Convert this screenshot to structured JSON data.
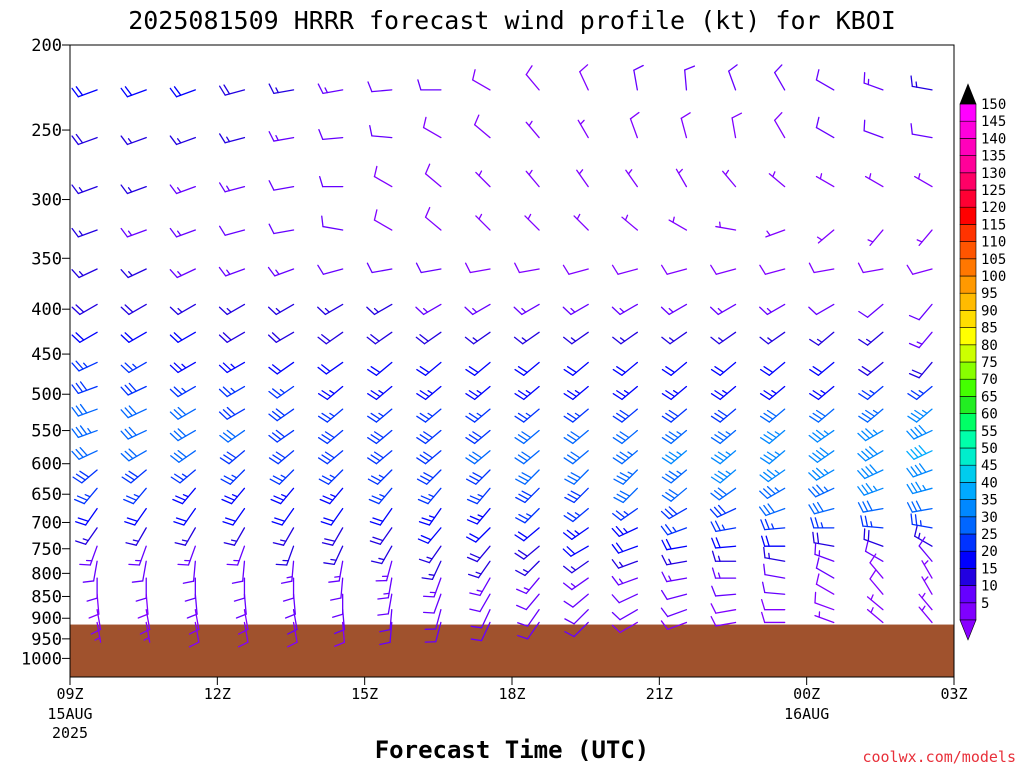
{
  "title": "2025081509 HRRR forecast wind profile (kt) for KBOI",
  "credit": "coolwx.com/models",
  "chart_data": {
    "type": "wind-barb-profile",
    "title": "2025081509 HRRR forecast wind profile (kt) for KBOI",
    "xlabel": "Forecast Time (UTC)",
    "ylabel": "",
    "y_scale": "log-pressure",
    "y_axis": {
      "ticks": [
        200,
        250,
        300,
        350,
        400,
        450,
        500,
        550,
        600,
        650,
        700,
        750,
        800,
        850,
        900,
        950,
        1000
      ],
      "range_hPa": [
        200,
        1050
      ]
    },
    "x_axis": {
      "ticks": [
        {
          "hour": 0,
          "label": "09Z",
          "sub": [
            "15AUG",
            "2025"
          ]
        },
        {
          "hour": 3,
          "label": "12Z",
          "sub": []
        },
        {
          "hour": 6,
          "label": "15Z",
          "sub": []
        },
        {
          "hour": 9,
          "label": "18Z",
          "sub": []
        },
        {
          "hour": 12,
          "label": "21Z",
          "sub": []
        },
        {
          "hour": 15,
          "label": "00Z",
          "sub": [
            "16AUG"
          ]
        },
        {
          "hour": 18,
          "label": "03Z",
          "sub": []
        }
      ],
      "range_hours": [
        0,
        18
      ]
    },
    "surface_pressure_hPa": 915,
    "ground_color": "#a0522d",
    "colorbar": {
      "labels": [
        5,
        10,
        15,
        20,
        25,
        30,
        35,
        40,
        45,
        50,
        55,
        60,
        65,
        70,
        75,
        80,
        85,
        90,
        95,
        100,
        105,
        110,
        115,
        120,
        125,
        130,
        135,
        140,
        145,
        150
      ],
      "colors": [
        "#8000ff",
        "#6600ff",
        "#2200e0",
        "#0000ff",
        "#0033ff",
        "#0066ff",
        "#0088ff",
        "#00aaff",
        "#00ccee",
        "#00eecc",
        "#00ffaa",
        "#00ff66",
        "#22ee22",
        "#44ff00",
        "#88ff00",
        "#ccff00",
        "#ffff00",
        "#ffdd00",
        "#ffbb00",
        "#ff9900",
        "#ff7700",
        "#ff5500",
        "#ff3300",
        "#ff0000",
        "#ff0033",
        "#ff0066",
        "#ff0099",
        "#ff00bb",
        "#ff00dd",
        "#ff00ff"
      ],
      "under_color": "#8800ff",
      "over_color": "#000000"
    },
    "barb_times_hours": [
      1,
      2,
      3,
      4,
      5,
      6,
      7,
      8,
      9,
      10,
      11,
      12,
      13,
      14,
      15,
      16,
      17,
      18
    ],
    "levels_hPa": [
      225,
      255,
      290,
      325,
      360,
      395,
      425,
      460,
      490,
      520,
      550,
      580,
      610,
      640,
      675,
      710,
      745,
      775,
      810,
      845,
      880,
      910
    ],
    "wind_dir_deg": [
      [
        250,
        250,
        250,
        255,
        260,
        260,
        265,
        270,
        300,
        320,
        335,
        350,
        355,
        340,
        330,
        300,
        290,
        280
      ],
      [
        250,
        250,
        250,
        255,
        260,
        265,
        275,
        300,
        310,
        320,
        330,
        340,
        345,
        350,
        330,
        300,
        290,
        280
      ],
      [
        250,
        250,
        250,
        255,
        260,
        270,
        300,
        310,
        315,
        320,
        325,
        325,
        330,
        320,
        310,
        300,
        300,
        300
      ],
      [
        250,
        250,
        250,
        255,
        260,
        280,
        300,
        310,
        315,
        315,
        315,
        310,
        300,
        280,
        250,
        230,
        220,
        220
      ],
      [
        245,
        245,
        245,
        250,
        250,
        255,
        260,
        260,
        260,
        260,
        255,
        255,
        255,
        255,
        255,
        260,
        260,
        255
      ],
      [
        240,
        240,
        240,
        240,
        240,
        240,
        240,
        240,
        240,
        240,
        240,
        240,
        240,
        240,
        240,
        240,
        230,
        220
      ],
      [
        240,
        240,
        240,
        240,
        240,
        235,
        235,
        235,
        235,
        235,
        235,
        235,
        235,
        235,
        235,
        230,
        230,
        220
      ],
      [
        245,
        240,
        240,
        240,
        235,
        235,
        230,
        230,
        230,
        230,
        230,
        230,
        230,
        230,
        230,
        230,
        230,
        220
      ],
      [
        250,
        245,
        240,
        240,
        235,
        230,
        230,
        230,
        230,
        230,
        230,
        230,
        230,
        230,
        230,
        230,
        230,
        230
      ],
      [
        250,
        245,
        240,
        240,
        235,
        230,
        230,
        230,
        230,
        230,
        230,
        230,
        230,
        230,
        230,
        230,
        230,
        230
      ],
      [
        250,
        245,
        240,
        235,
        235,
        230,
        230,
        230,
        230,
        230,
        230,
        230,
        230,
        230,
        230,
        235,
        240,
        245
      ],
      [
        245,
        240,
        235,
        230,
        230,
        230,
        230,
        230,
        230,
        230,
        230,
        230,
        230,
        230,
        230,
        235,
        240,
        245
      ],
      [
        230,
        230,
        230,
        225,
        225,
        225,
        225,
        225,
        225,
        225,
        225,
        225,
        230,
        230,
        235,
        240,
        245,
        250
      ],
      [
        220,
        220,
        220,
        220,
        220,
        220,
        220,
        220,
        220,
        225,
        225,
        225,
        230,
        235,
        240,
        245,
        250,
        255
      ],
      [
        215,
        215,
        215,
        215,
        215,
        215,
        215,
        215,
        220,
        225,
        230,
        235,
        240,
        245,
        250,
        255,
        260,
        260
      ],
      [
        215,
        210,
        210,
        210,
        210,
        210,
        215,
        220,
        225,
        230,
        235,
        245,
        250,
        260,
        265,
        270,
        275,
        280
      ],
      [
        200,
        200,
        200,
        200,
        200,
        205,
        210,
        215,
        220,
        230,
        240,
        250,
        260,
        265,
        270,
        280,
        290,
        300
      ],
      [
        190,
        190,
        185,
        185,
        185,
        190,
        195,
        205,
        215,
        225,
        235,
        250,
        260,
        270,
        280,
        290,
        300,
        320
      ],
      [
        180,
        180,
        180,
        180,
        180,
        185,
        190,
        200,
        210,
        220,
        235,
        250,
        260,
        270,
        280,
        300,
        320,
        330
      ],
      [
        175,
        175,
        175,
        175,
        175,
        180,
        190,
        200,
        210,
        220,
        230,
        245,
        255,
        265,
        275,
        300,
        320,
        330
      ],
      [
        170,
        170,
        170,
        170,
        170,
        175,
        185,
        195,
        205,
        215,
        225,
        240,
        250,
        260,
        270,
        290,
        310,
        320
      ],
      [
        170,
        170,
        170,
        170,
        170,
        175,
        185,
        195,
        205,
        215,
        225,
        240,
        250,
        260,
        270,
        290,
        310,
        320
      ]
    ],
    "wind_speed_kt": [
      [
        22,
        21,
        20,
        18,
        16,
        14,
        12,
        10,
        9,
        9,
        9,
        10,
        10,
        10,
        11,
        12,
        14,
        15
      ],
      [
        18,
        17,
        16,
        15,
        13,
        12,
        10,
        9,
        8,
        7,
        7,
        8,
        8,
        9,
        9,
        10,
        11,
        12
      ],
      [
        16,
        15,
        14,
        13,
        12,
        10,
        9,
        8,
        7,
        7,
        7,
        7,
        7,
        6,
        6,
        6,
        7,
        7
      ],
      [
        15,
        14,
        13,
        12,
        11,
        10,
        9,
        8,
        7,
        7,
        6,
        6,
        5,
        5,
        5,
        5,
        5,
        6
      ],
      [
        16,
        15,
        14,
        14,
        13,
        12,
        11,
        10,
        9,
        9,
        9,
        9,
        9,
        9,
        9,
        9,
        8,
        8
      ],
      [
        18,
        18,
        17,
        16,
        16,
        15,
        15,
        14,
        14,
        14,
        14,
        14,
        14,
        14,
        13,
        12,
        11,
        10
      ],
      [
        22,
        21,
        20,
        19,
        19,
        18,
        18,
        18,
        17,
        17,
        17,
        17,
        17,
        17,
        17,
        16,
        15,
        14
      ],
      [
        26,
        25,
        24,
        23,
        22,
        21,
        21,
        20,
        20,
        20,
        20,
        20,
        20,
        20,
        20,
        20,
        19,
        18
      ],
      [
        29,
        28,
        27,
        26,
        25,
        24,
        23,
        23,
        23,
        23,
        23,
        23,
        23,
        23,
        23,
        24,
        25,
        26
      ],
      [
        32,
        31,
        30,
        29,
        28,
        27,
        26,
        26,
        26,
        26,
        27,
        28,
        28,
        29,
        30,
        31,
        33,
        35
      ],
      [
        33,
        32,
        31,
        30,
        29,
        28,
        28,
        28,
        29,
        30,
        31,
        32,
        33,
        34,
        35,
        36,
        37,
        38
      ],
      [
        32,
        31,
        30,
        29,
        28,
        28,
        28,
        29,
        30,
        31,
        32,
        34,
        35,
        36,
        37,
        38,
        39,
        40
      ],
      [
        28,
        28,
        27,
        27,
        26,
        26,
        27,
        28,
        29,
        30,
        31,
        33,
        34,
        35,
        36,
        37,
        38,
        38
      ],
      [
        25,
        25,
        24,
        24,
        24,
        24,
        25,
        26,
        27,
        28,
        29,
        30,
        31,
        32,
        33,
        34,
        35,
        35
      ],
      [
        20,
        20,
        20,
        20,
        21,
        21,
        22,
        23,
        24,
        25,
        26,
        27,
        28,
        29,
        30,
        30,
        31,
        31
      ],
      [
        16,
        16,
        16,
        17,
        17,
        18,
        19,
        20,
        21,
        22,
        23,
        24,
        25,
        25,
        26,
        26,
        26,
        25
      ],
      [
        13,
        13,
        14,
        14,
        15,
        15,
        16,
        17,
        18,
        19,
        20,
        20,
        20,
        20,
        20,
        19,
        18,
        16
      ],
      [
        11,
        11,
        12,
        12,
        13,
        13,
        14,
        15,
        15,
        16,
        16,
        16,
        16,
        15,
        15,
        14,
        12,
        10
      ],
      [
        10,
        10,
        11,
        11,
        12,
        12,
        13,
        13,
        14,
        14,
        14,
        14,
        13,
        13,
        12,
        11,
        9,
        7
      ],
      [
        9,
        9,
        10,
        10,
        11,
        11,
        12,
        12,
        12,
        12,
        12,
        12,
        11,
        11,
        10,
        9,
        8,
        6
      ],
      [
        8,
        8,
        9,
        9,
        10,
        10,
        11,
        11,
        11,
        11,
        11,
        10,
        10,
        9,
        9,
        8,
        7,
        6
      ],
      [
        7,
        7,
        8,
        8,
        9,
        9,
        10,
        10,
        10,
        10,
        10,
        9,
        9,
        8,
        8,
        7,
        6,
        5
      ]
    ]
  }
}
